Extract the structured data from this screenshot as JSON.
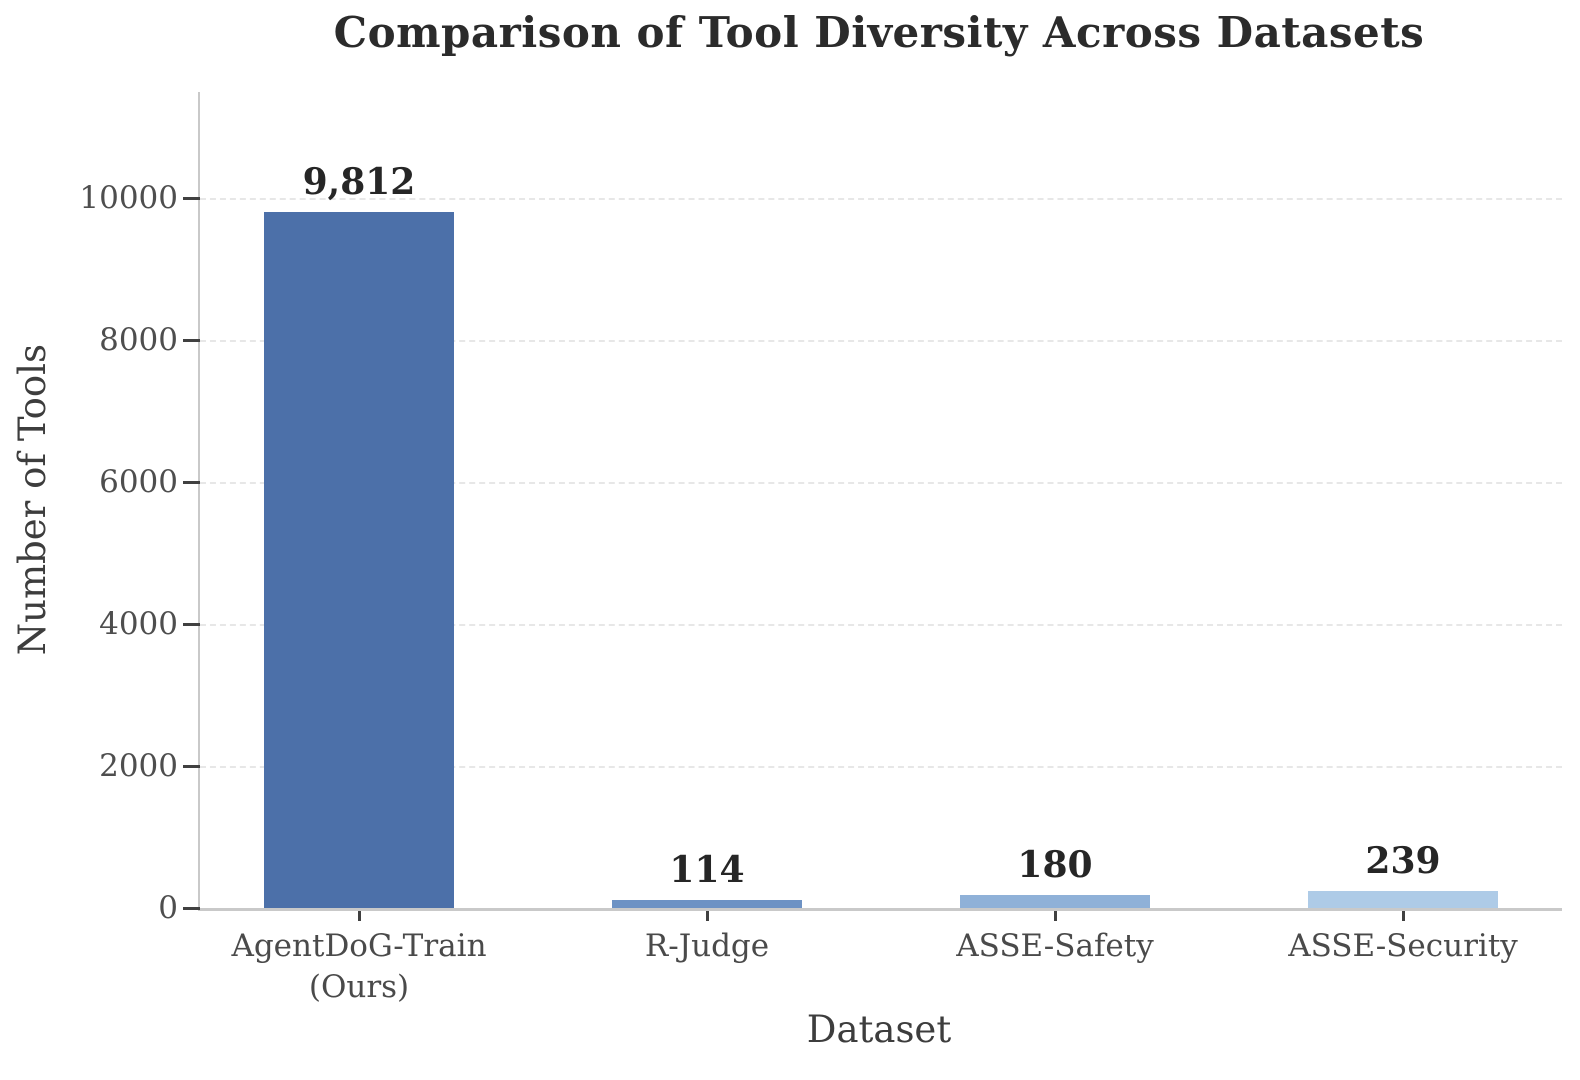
{
  "chart_data": {
    "type": "bar",
    "title": "Comparison of Tool Diversity Across Datasets",
    "xlabel": "Dataset",
    "ylabel": "Number of Tools",
    "categories": [
      "AgentDoG-Train\n(Ours)",
      "R-Judge",
      "ASSE-Safety",
      "ASSE-Security"
    ],
    "values": [
      9812,
      114,
      180,
      239
    ],
    "value_labels": [
      "9,812",
      "114",
      "180",
      "239"
    ],
    "bar_colors": [
      "#4C70A9",
      "#6D92C4",
      "#8FB1D8",
      "#AECBE7"
    ],
    "yticks": [
      0,
      2000,
      4000,
      6000,
      8000,
      10000
    ],
    "ytick_labels": [
      "0",
      "2000",
      "4000",
      "6000",
      "8000",
      "10000"
    ],
    "ylim": [
      0,
      11500
    ],
    "grid": "horizontal-dashed",
    "legend_position": "none"
  },
  "colors": {
    "background": "#ffffff",
    "spine": "#c9c9c9",
    "gridline": "#e7e7e7",
    "tick_mark": "#404040",
    "tick_text": "#4e4e4e",
    "axis_label_text": "#3d3d3d",
    "title_text": "#2b2b2b",
    "value_label_text": "#262626"
  }
}
